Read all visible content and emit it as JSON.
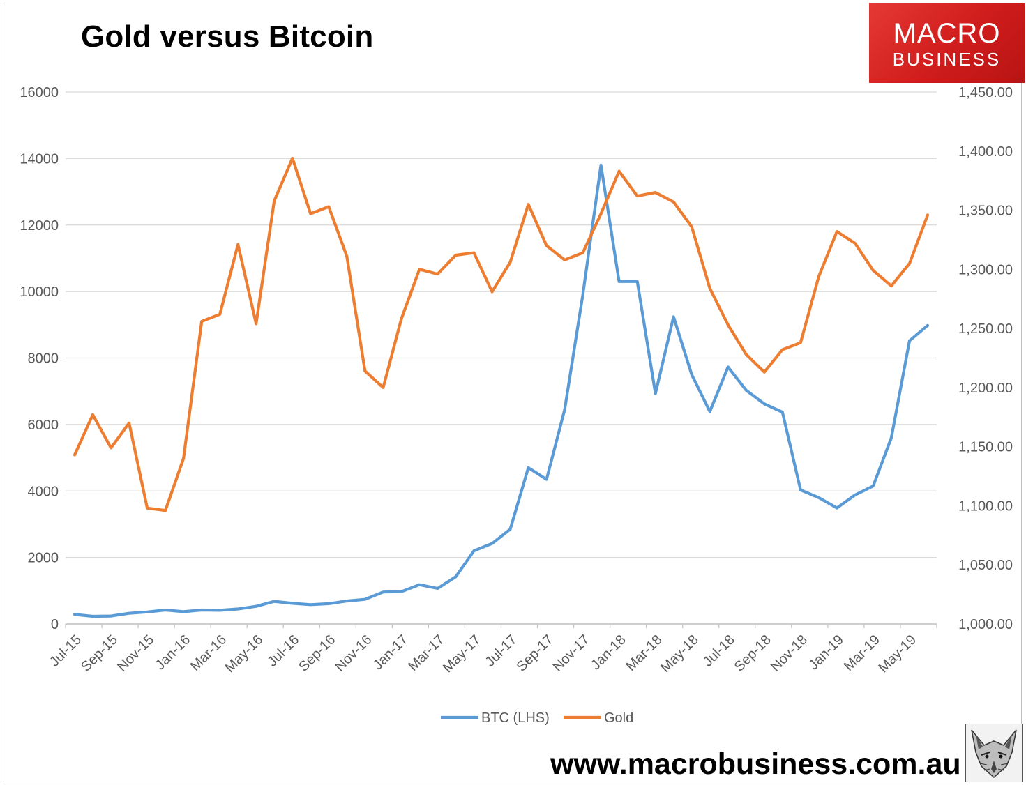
{
  "title": "Gold versus Bitcoin",
  "website": "www.macrobusiness.com.au",
  "logo": {
    "line1": "MACRO",
    "line2": "BUSINESS",
    "color": "#d92626"
  },
  "fox_icon": "fox-head-icon",
  "chart_data": {
    "type": "line",
    "title": "Gold versus Bitcoin",
    "x_tick_labels": [
      "Jul-15",
      "Sep-15",
      "Nov-15",
      "Jan-16",
      "Mar-16",
      "May-16",
      "Jul-16",
      "Sep-16",
      "Nov-16",
      "Jan-17",
      "Mar-17",
      "May-17",
      "Jul-17",
      "Sep-17",
      "Nov-17",
      "Jan-18",
      "Mar-18",
      "May-18",
      "Jul-18",
      "Sep-18",
      "Nov-18",
      "Jan-19",
      "Mar-19",
      "May-19"
    ],
    "x": [
      "Jul-15",
      "Aug-15",
      "Sep-15",
      "Oct-15",
      "Nov-15",
      "Dec-15",
      "Jan-16",
      "Feb-16",
      "Mar-16",
      "Apr-16",
      "May-16",
      "Jun-16",
      "Jul-16",
      "Aug-16",
      "Sep-16",
      "Oct-16",
      "Nov-16",
      "Dec-16",
      "Jan-17",
      "Feb-17",
      "Mar-17",
      "Apr-17",
      "May-17",
      "Jun-17",
      "Jul-17",
      "Aug-17",
      "Sep-17",
      "Oct-17",
      "Nov-17",
      "Dec-17",
      "Jan-18",
      "Feb-18",
      "Mar-18",
      "Apr-18",
      "May-18",
      "Jun-18",
      "Jul-18",
      "Aug-18",
      "Sep-18",
      "Oct-18",
      "Nov-18",
      "Dec-18",
      "Jan-19",
      "Feb-19",
      "Mar-19",
      "Apr-19",
      "May-19",
      "Jun-19"
    ],
    "left_axis": {
      "min": 0,
      "max": 16000,
      "step": 2000,
      "tick_labels": [
        "0",
        "2000",
        "4000",
        "6000",
        "8000",
        "10000",
        "12000",
        "14000",
        "16000"
      ]
    },
    "right_axis": {
      "min": 1000,
      "max": 1450,
      "step": 50,
      "tick_labels": [
        "1,000.00",
        "1,050.00",
        "1,100.00",
        "1,150.00",
        "1,200.00",
        "1,250.00",
        "1,300.00",
        "1,350.00",
        "1,400.00",
        "1,450.00"
      ]
    },
    "series": [
      {
        "name": "BTC (LHS)",
        "axis": "left",
        "color": "#5b9bd5",
        "values": [
          285,
          230,
          240,
          320,
          360,
          420,
          370,
          420,
          410,
          450,
          530,
          680,
          620,
          580,
          610,
          690,
          740,
          960,
          970,
          1180,
          1070,
          1420,
          2200,
          2420,
          2850,
          4700,
          4350,
          6450,
          9900,
          13800,
          10300,
          10300,
          6930,
          9240,
          7500,
          6390,
          7730,
          7030,
          6620,
          6370,
          4030,
          3800,
          3490,
          3880,
          4150,
          5600,
          8520,
          8980
        ]
      },
      {
        "name": "Gold",
        "axis": "right",
        "color": "#ed7d31",
        "values": [
          1143,
          1177,
          1149,
          1170,
          1098,
          1096,
          1140,
          1256,
          1262,
          1321,
          1254,
          1358,
          1394,
          1347,
          1353,
          1311,
          1214,
          1200,
          1258,
          1300,
          1296,
          1312,
          1314,
          1281,
          1306,
          1355,
          1320,
          1308,
          1314,
          1347,
          1383,
          1362,
          1365,
          1357,
          1336,
          1284,
          1253,
          1228,
          1213,
          1232,
          1238,
          1294,
          1332,
          1322,
          1299,
          1286,
          1305,
          1346
        ]
      }
    ],
    "legend": {
      "position": "bottom"
    },
    "grid": true,
    "xlabel": "",
    "ylabel": "",
    "y2label": ""
  }
}
